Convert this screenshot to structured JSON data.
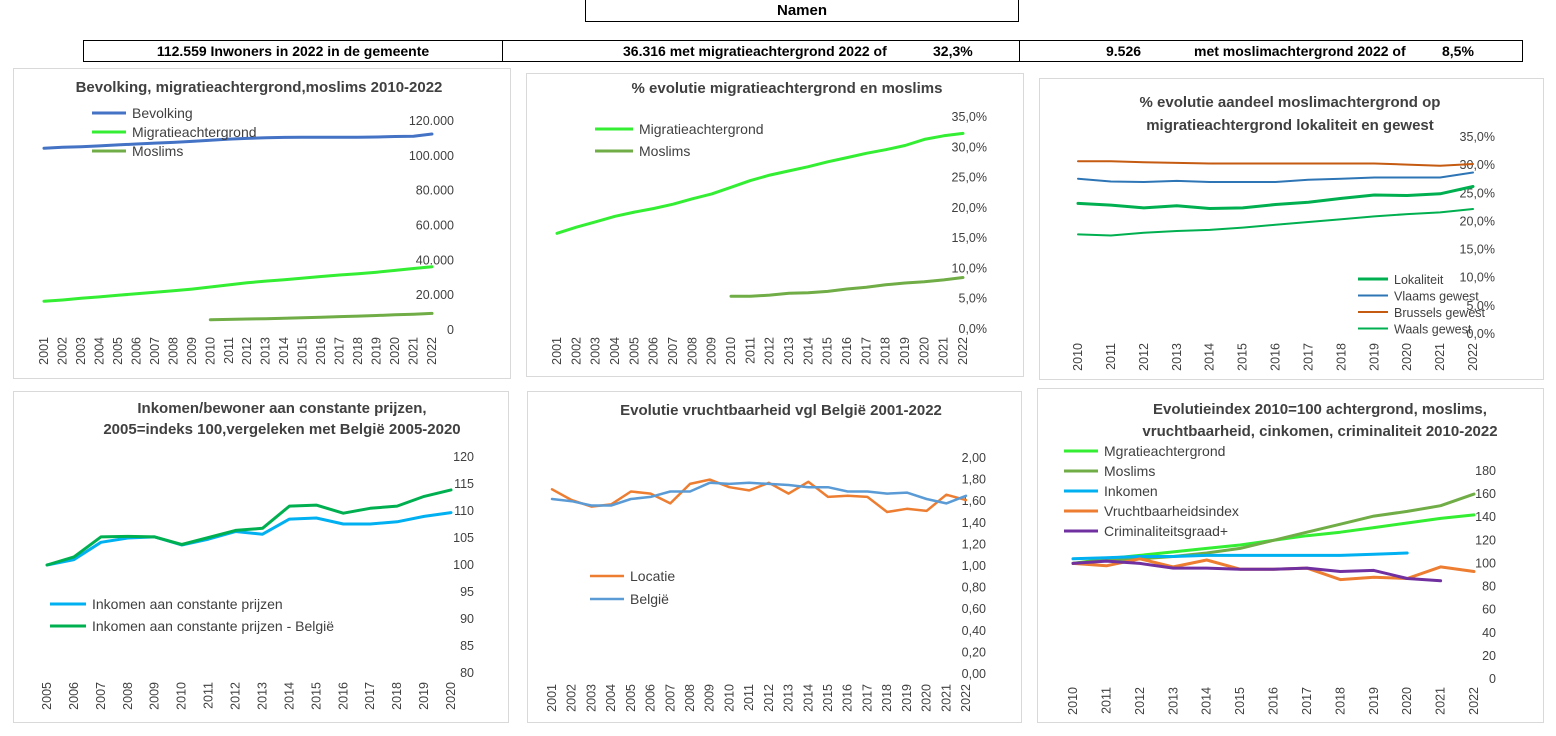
{
  "header": {
    "title": "Namen",
    "population": "112.559 Inwoners in 2022 in de gemeente",
    "migration": "36.316 met migratieachtergrond 2022 of",
    "migration_pct": "32,3%",
    "muslims_count": "9.526",
    "muslims": "met moslimachtergrond 2022 of",
    "muslims_pct": "8,5%"
  },
  "chart_data": [
    {
      "id": "c1",
      "type": "line",
      "title": [
        "Bevolking, migratieachtergrond,moslims 2010-2022"
      ],
      "x": [
        "2001",
        "2002",
        "2003",
        "2004",
        "2005",
        "2006",
        "2007",
        "2008",
        "2009",
        "2010",
        "2011",
        "2012",
        "2013",
        "2014",
        "2015",
        "2016",
        "2017",
        "2018",
        "2019",
        "2020",
        "2021",
        "2022"
      ],
      "ylim": [
        0,
        120000
      ],
      "yticks": [
        {
          "v": 0,
          "label": "0"
        },
        {
          "v": 20000,
          "label": "20.000"
        },
        {
          "v": 40000,
          "label": "40.000"
        },
        {
          "v": 60000,
          "label": "60.000"
        },
        {
          "v": 80000,
          "label": "80.000"
        },
        {
          "v": 100000,
          "label": "100.000"
        },
        {
          "v": 120000,
          "label": "120.000"
        }
      ],
      "legend": "top-left",
      "series": [
        {
          "name": "Bevolking",
          "color": "#4472c4",
          "values": [
            104400,
            104900,
            105200,
            105700,
            106300,
            106800,
            107300,
            107700,
            108300,
            108900,
            109600,
            110000,
            110400,
            110600,
            110700,
            110700,
            110700,
            110700,
            110800,
            111100,
            111300,
            112559
          ]
        },
        {
          "name": "Migratieachtergrond",
          "color": "#33ee33",
          "values": [
            16500,
            17200,
            18200,
            19000,
            20000,
            20800,
            21700,
            22500,
            23500,
            24700,
            25900,
            27100,
            28100,
            28900,
            29800,
            30700,
            31600,
            32300,
            33200,
            34200,
            35300,
            36316
          ]
        },
        {
          "name": "Moslims",
          "color": "#70ad47",
          "values": [
            null,
            null,
            null,
            null,
            null,
            null,
            null,
            null,
            null,
            5900,
            6100,
            6300,
            6500,
            6800,
            7000,
            7300,
            7700,
            8000,
            8300,
            8700,
            9100,
            9526
          ]
        }
      ]
    },
    {
      "id": "c2",
      "type": "line",
      "title": [
        "% evolutie migratieachtergrond en moslims"
      ],
      "x": [
        "2001",
        "2002",
        "2003",
        "2004",
        "2005",
        "2006",
        "2007",
        "2008",
        "2009",
        "2010",
        "2011",
        "2012",
        "2013",
        "2014",
        "2015",
        "2016",
        "2017",
        "2018",
        "2019",
        "2020",
        "2021",
        "2022"
      ],
      "ylim": [
        0,
        35
      ],
      "yticks": [
        {
          "v": 0,
          "label": "0,0%"
        },
        {
          "v": 5,
          "label": "5,0%"
        },
        {
          "v": 10,
          "label": "10,0%"
        },
        {
          "v": 15,
          "label": "15,0%"
        },
        {
          "v": 20,
          "label": "20,0%"
        },
        {
          "v": 25,
          "label": "25,0%"
        },
        {
          "v": 30,
          "label": "30,0%"
        },
        {
          "v": 35,
          "label": "35,0%"
        }
      ],
      "legend": "top-left",
      "series": [
        {
          "name": "Migratieachtergrond",
          "color": "#33ee33",
          "values": [
            15.8,
            16.8,
            17.7,
            18.6,
            19.3,
            19.9,
            20.6,
            21.5,
            22.3,
            23.4,
            24.5,
            25.4,
            26.1,
            26.8,
            27.6,
            28.3,
            29.0,
            29.6,
            30.3,
            31.3,
            31.9,
            32.3
          ]
        },
        {
          "name": "Moslims",
          "color": "#70ad47",
          "values": [
            null,
            null,
            null,
            null,
            null,
            null,
            null,
            null,
            null,
            5.4,
            5.4,
            5.6,
            5.9,
            6.0,
            6.2,
            6.6,
            6.9,
            7.3,
            7.6,
            7.8,
            8.1,
            8.5
          ]
        }
      ]
    },
    {
      "id": "c3",
      "type": "line",
      "title": [
        "% evolutie aandeel moslimachtergrond op",
        "migratieachtergrond lokaliteit en gewest"
      ],
      "x": [
        "2010",
        "2011",
        "2012",
        "2013",
        "2014",
        "2015",
        "2016",
        "2017",
        "2018",
        "2019",
        "2020",
        "2021",
        "2022"
      ],
      "ylim": [
        0,
        35
      ],
      "yticks": [
        {
          "v": 0,
          "label": "0,0%"
        },
        {
          "v": 5,
          "label": "5,0%"
        },
        {
          "v": 10,
          "label": "10,0%"
        },
        {
          "v": 15,
          "label": "15,0%"
        },
        {
          "v": 20,
          "label": "20,0%"
        },
        {
          "v": 25,
          "label": "25,0%"
        },
        {
          "v": 30,
          "label": "30,0%"
        },
        {
          "v": 35,
          "label": "35,0%"
        }
      ],
      "legend": "bottom-right",
      "series": [
        {
          "name": "Lokaliteit",
          "color": "#00b050",
          "values": [
            23.2,
            22.9,
            22.4,
            22.8,
            22.3,
            22.4,
            23.0,
            23.4,
            24.1,
            24.7,
            24.6,
            24.9,
            26.2
          ],
          "bold": true
        },
        {
          "name": "Vlaams gewest",
          "color": "#2e75b6",
          "values": [
            27.6,
            27.1,
            27.0,
            27.2,
            27.0,
            27.0,
            27.0,
            27.4,
            27.6,
            27.8,
            27.8,
            27.8,
            28.7
          ]
        },
        {
          "name": "Brussels gewest",
          "color": "#c55a11",
          "values": [
            30.7,
            30.7,
            30.5,
            30.4,
            30.3,
            30.3,
            30.3,
            30.3,
            30.3,
            30.3,
            30.1,
            29.9,
            30.2
          ]
        },
        {
          "name": "Waals gewest",
          "color": "#00b050",
          "values": [
            17.7,
            17.5,
            18.0,
            18.3,
            18.5,
            18.9,
            19.4,
            19.9,
            20.4,
            20.9,
            21.3,
            21.6,
            22.2
          ]
        }
      ]
    },
    {
      "id": "c4",
      "type": "line",
      "title": [
        "Inkomen/bewoner aan constante prijzen,",
        "2005=indeks 100,vergeleken met België 2005-2020"
      ],
      "x": [
        "2005",
        "2006",
        "2007",
        "2008",
        "2009",
        "2010",
        "2011",
        "2012",
        "2013",
        "2014",
        "2015",
        "2016",
        "2017",
        "2018",
        "2019",
        "2020"
      ],
      "ylim": [
        80,
        120
      ],
      "yticks": [
        {
          "v": 80,
          "label": "80"
        },
        {
          "v": 85,
          "label": "85"
        },
        {
          "v": 90,
          "label": "90"
        },
        {
          "v": 95,
          "label": "95"
        },
        {
          "v": 100,
          "label": "100"
        },
        {
          "v": 105,
          "label": "105"
        },
        {
          "v": 110,
          "label": "110"
        },
        {
          "v": 115,
          "label": "115"
        },
        {
          "v": 120,
          "label": "120"
        }
      ],
      "legend": "bottom-left",
      "series": [
        {
          "name": "Inkomen aan constante prijzen",
          "color": "#00b0f0",
          "values": [
            100,
            101,
            104.2,
            105,
            105.2,
            103.7,
            104.8,
            106.2,
            105.7,
            108.5,
            108.7,
            107.6,
            107.6,
            108,
            109,
            109.7
          ]
        },
        {
          "name": "Inkomen aan constante prijzen - België",
          "color": "#00b050",
          "values": [
            100,
            101.5,
            105.2,
            105.3,
            105.2,
            103.8,
            105.1,
            106.4,
            106.8,
            110.9,
            111.1,
            109.6,
            110.5,
            110.9,
            112.7,
            113.9
          ]
        }
      ]
    },
    {
      "id": "c5",
      "type": "line",
      "title": [
        "Evolutie vruchtbaarheid vgl België 2001-2022"
      ],
      "x": [
        "2001",
        "2002",
        "2003",
        "2004",
        "2005",
        "2006",
        "2007",
        "2008",
        "2009",
        "2010",
        "2011",
        "2012",
        "2013",
        "2014",
        "2015",
        "2016",
        "2017",
        "2018",
        "2019",
        "2020",
        "2021",
        "2022"
      ],
      "ylim": [
        0,
        2
      ],
      "yticks": [
        {
          "v": 0,
          "label": "0,00"
        },
        {
          "v": 0.2,
          "label": "0,20"
        },
        {
          "v": 0.4,
          "label": "0,40"
        },
        {
          "v": 0.6,
          "label": "0,60"
        },
        {
          "v": 0.8,
          "label": "0,80"
        },
        {
          "v": 1.0,
          "label": "1,00"
        },
        {
          "v": 1.2,
          "label": "1,20"
        },
        {
          "v": 1.4,
          "label": "1,40"
        },
        {
          "v": 1.6,
          "label": "1,60"
        },
        {
          "v": 1.8,
          "label": "1,80"
        },
        {
          "v": 2.0,
          "label": "2,00"
        }
      ],
      "legend": "left",
      "series": [
        {
          "name": "Locatie",
          "color": "#ed7d31",
          "values": [
            1.71,
            1.61,
            1.55,
            1.57,
            1.69,
            1.67,
            1.58,
            1.76,
            1.8,
            1.73,
            1.7,
            1.77,
            1.67,
            1.78,
            1.64,
            1.65,
            1.64,
            1.5,
            1.53,
            1.51,
            1.66,
            1.61
          ]
        },
        {
          "name": "België",
          "color": "#5b9bd5",
          "values": [
            1.62,
            1.6,
            1.56,
            1.56,
            1.62,
            1.64,
            1.69,
            1.69,
            1.77,
            1.76,
            1.77,
            1.76,
            1.75,
            1.73,
            1.73,
            1.69,
            1.69,
            1.67,
            1.68,
            1.62,
            1.58,
            1.65
          ]
        }
      ]
    },
    {
      "id": "c6",
      "type": "line",
      "title": [
        "Evolutieindex 2010=100 achtergrond, moslims,",
        "vruchtbaarheid, cinkomen, criminaliteit 2010-2022"
      ],
      "x": [
        "2010",
        "2011",
        "2012",
        "2013",
        "2014",
        "2015",
        "2016",
        "2017",
        "2018",
        "2019",
        "2020",
        "2021",
        "2022"
      ],
      "ylim": [
        0,
        180
      ],
      "yticks": [
        {
          "v": 0,
          "label": "0"
        },
        {
          "v": 20,
          "label": "20"
        },
        {
          "v": 40,
          "label": "40"
        },
        {
          "v": 60,
          "label": "60"
        },
        {
          "v": 80,
          "label": "80"
        },
        {
          "v": 100,
          "label": "100"
        },
        {
          "v": 120,
          "label": "120"
        },
        {
          "v": 140,
          "label": "140"
        },
        {
          "v": 160,
          "label": "160"
        },
        {
          "v": 180,
          "label": "180"
        }
      ],
      "legend": "top-left",
      "series": [
        {
          "name": "Mgratieachtergrond",
          "color": "#33ee33",
          "values": [
            100,
            104,
            107,
            110,
            113,
            116,
            120,
            124,
            127,
            131,
            135,
            139,
            142
          ]
        },
        {
          "name": "Moslims",
          "color": "#70ad47",
          "values": [
            100,
            103,
            104,
            106,
            109,
            113,
            120,
            127,
            134,
            141,
            145,
            150,
            160
          ]
        },
        {
          "name": "Inkomen",
          "color": "#00b0f0",
          "values": [
            104,
            105,
            106,
            106,
            107,
            107,
            107,
            107,
            107,
            108,
            109,
            null,
            null
          ]
        },
        {
          "name": "Vruchtbaarheidsindex",
          "color": "#ed7d31",
          "values": [
            100,
            98,
            104,
            97,
            103,
            95,
            95,
            96,
            86,
            88,
            87,
            97,
            93
          ]
        },
        {
          "name": "Criminaliteitsgraad+",
          "color": "#7030a0",
          "values": [
            100,
            102,
            100,
            96,
            96,
            95,
            95,
            96,
            93,
            94,
            87,
            85,
            null
          ]
        }
      ]
    }
  ]
}
